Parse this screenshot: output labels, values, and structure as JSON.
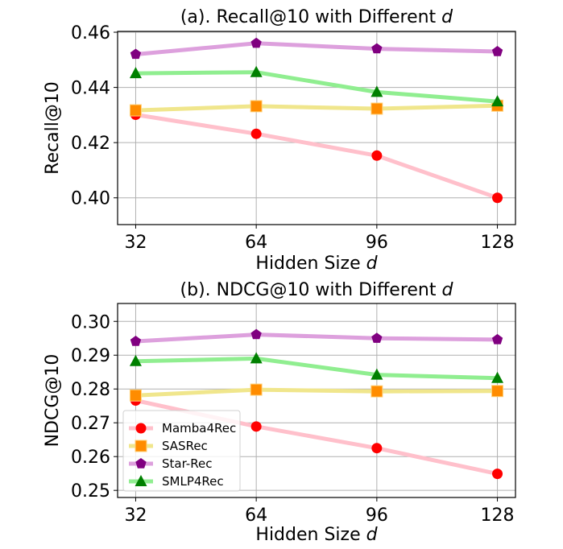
{
  "chart_data": [
    {
      "type": "line",
      "title": "(a). Recall@10 with Different d",
      "title_prefix": "(a). Recall@10 with Different ",
      "title_var": "d",
      "xlabel": "Hidden Size d",
      "xlabel_prefix": "Hidden Size ",
      "xlabel_var": "d",
      "ylabel": "Recall@10",
      "x": [
        32,
        64,
        96,
        128
      ],
      "xticks": [
        "32",
        "64",
        "96",
        "128"
      ],
      "yticks": [
        "0.40",
        "0.42",
        "0.44",
        "0.46"
      ],
      "xlim": [
        27.2,
        132.8
      ],
      "ylim": [
        0.3903,
        0.4603
      ],
      "grid": true,
      "series": [
        {
          "name": "Mamba4Rec",
          "values": [
            0.4301,
            0.4232,
            0.4153,
            0.4
          ]
        },
        {
          "name": "SASRec",
          "values": [
            0.4317,
            0.4332,
            0.4323,
            0.4334
          ]
        },
        {
          "name": "Star-Rec",
          "values": [
            0.452,
            0.456,
            0.454,
            0.453
          ]
        },
        {
          "name": "SMLP4Rec",
          "values": [
            0.4451,
            0.4455,
            0.4383,
            0.4349
          ]
        }
      ]
    },
    {
      "type": "line",
      "title": "(b). NDCG@10 with Different d",
      "title_prefix": "(b). NDCG@10 with Different ",
      "title_var": "d",
      "xlabel": "Hidden Size d",
      "xlabel_prefix": "Hidden Size ",
      "xlabel_var": "d",
      "ylabel": "NDCG@10",
      "x": [
        32,
        64,
        96,
        128
      ],
      "xticks": [
        "32",
        "64",
        "96",
        "128"
      ],
      "yticks": [
        "0.25",
        "0.26",
        "0.27",
        "0.28",
        "0.29",
        "0.30"
      ],
      "xlim": [
        27.2,
        132.8
      ],
      "ylim": [
        0.2479,
        0.3053
      ],
      "grid": true,
      "legend": "lower-left",
      "series": [
        {
          "name": "Mamba4Rec",
          "values": [
            0.2766,
            0.2689,
            0.2625,
            0.2549
          ]
        },
        {
          "name": "SASRec",
          "values": [
            0.2781,
            0.2798,
            0.2793,
            0.2794
          ]
        },
        {
          "name": "Star-Rec",
          "values": [
            0.2941,
            0.2961,
            0.295,
            0.2946
          ]
        },
        {
          "name": "SMLP4Rec",
          "values": [
            0.2882,
            0.289,
            0.2842,
            0.2832
          ]
        }
      ]
    }
  ],
  "styles": {
    "Mamba4Rec": {
      "line": "#ffc0cb",
      "marker": "#ff0000",
      "shape": "circle"
    },
    "SASRec": {
      "line": "#f0e68c",
      "marker": "#ff8c00",
      "shape": "square"
    },
    "Star-Rec": {
      "line": "#dda0dd",
      "marker": "#800080",
      "shape": "pentagon"
    },
    "SMLP4Rec": {
      "line": "#90ee90",
      "marker": "#008000",
      "shape": "triangle"
    }
  }
}
